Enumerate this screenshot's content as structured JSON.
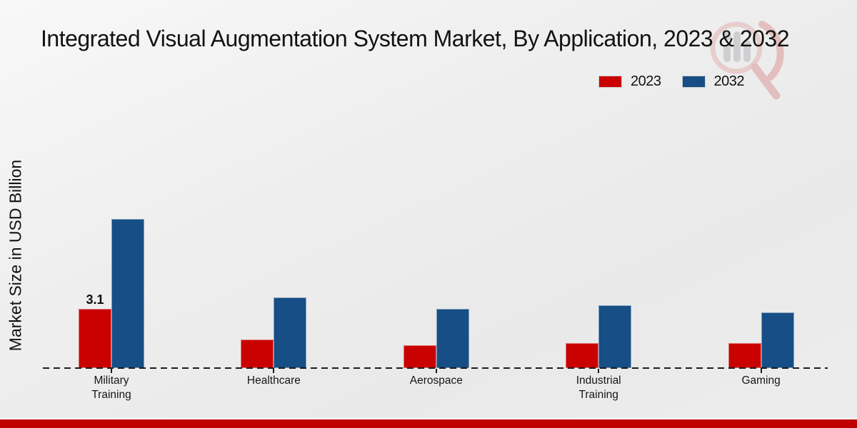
{
  "header": {
    "title": "Integrated Visual Augmentation System Market, By Application, 2023 & 2032"
  },
  "watermark": {
    "icon": "market-research-magnifier-logo",
    "ring_color": "#e3b3b3",
    "bars_color": "#b7b7bd",
    "swoosh_color": "#dc9a9a"
  },
  "footer": {
    "bar_color": "#c00000"
  },
  "chart_data": {
    "type": "bar",
    "title": "Integrated Visual Augmentation System Market, By Application, 2023 & 2032",
    "xlabel": "",
    "ylabel": "Market Size in USD Billion",
    "categories": [
      "Military Training",
      "Healthcare",
      "Aerospace",
      "Industrial Training",
      "Gaming"
    ],
    "series": [
      {
        "name": "2023",
        "color": "#c90101",
        "values": [
          3.1,
          1.5,
          1.2,
          1.3,
          1.3
        ]
      },
      {
        "name": "2032",
        "color": "#164e85",
        "values": [
          7.8,
          3.7,
          3.1,
          3.3,
          2.9
        ]
      }
    ],
    "bar_value_labels": [
      {
        "category": "Military Training",
        "series": "2023",
        "text": "3.1"
      }
    ],
    "ylim": [
      0,
      9.6
    ],
    "grid": false,
    "legend_position": "top-right",
    "baseline_style": "dashed",
    "axis_color": "#1c1c1c"
  }
}
